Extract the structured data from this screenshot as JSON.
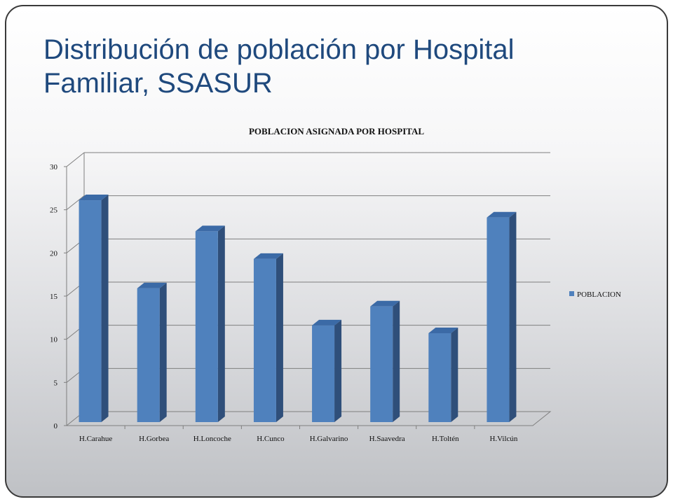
{
  "slide": {
    "title_line1": "Distribución de población por Hospital",
    "title_line2": "Familiar, SSASUR"
  },
  "colors": {
    "title": "#1f497d",
    "bar_front": "#4f81bd",
    "bar_side": "#2f4f7a",
    "bar_top": "#3b6aa6",
    "grid": "#7f7f7f"
  },
  "chart_data": {
    "type": "bar",
    "title": "POBLACION ASIGNADA POR HOSPITAL",
    "categories": [
      "H.Carahue",
      "H.Gorbea",
      "H.Loncoche",
      "H.Cunco",
      "H.Galvarino",
      "H.Saavedra",
      "H.Toltén",
      "H.Vilcún"
    ],
    "series": [
      {
        "name": "POBLACION",
        "values": [
          25.7,
          15.5,
          22.1,
          18.9,
          11.2,
          13.4,
          10.3,
          23.7
        ]
      }
    ],
    "ylim": [
      0,
      30
    ],
    "yticks": [
      "0",
      "5",
      "10",
      "15",
      "20",
      "25",
      "30"
    ],
    "grid": true,
    "legend_position": "right",
    "three_d": true
  }
}
